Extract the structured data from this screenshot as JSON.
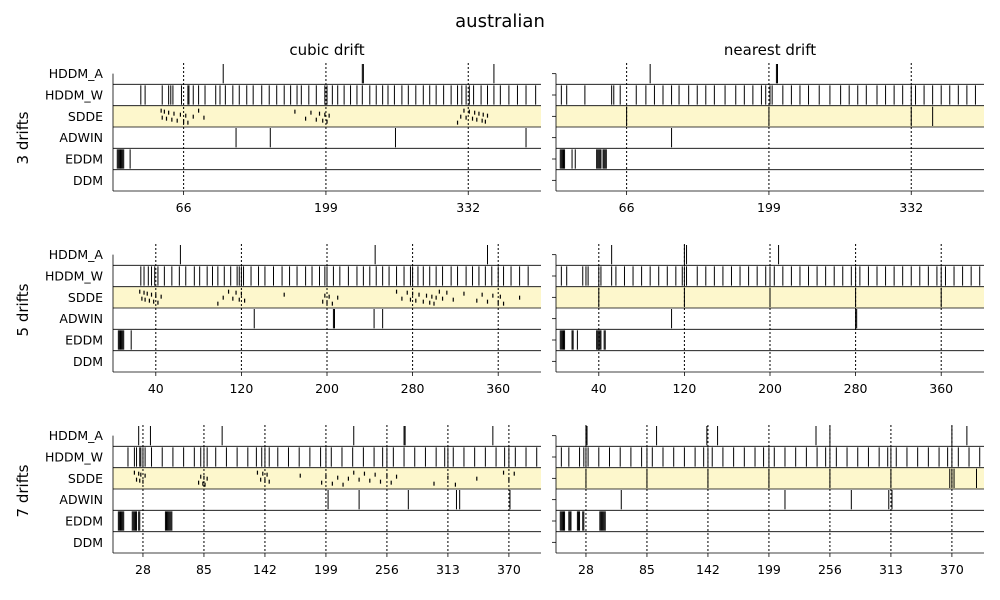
{
  "figure_title": "australian",
  "column_titles": [
    "cubic drift",
    "nearest drift"
  ],
  "row_titles": [
    "3 drifts",
    "5 drifts",
    "7 drifts"
  ],
  "detectors": [
    "HDDM_A",
    "HDDM_W",
    "SDDE",
    "ADWIN",
    "EDDM",
    "DDM"
  ],
  "colors": {
    "highlight": "#fdf7cc",
    "marks": "#000000",
    "frame": "#000000"
  },
  "chart_data": [
    {
      "type": "event-raster",
      "title": "cubic drift",
      "row_label": "3 drifts",
      "xlim": [
        0,
        400
      ],
      "xticks": [
        66,
        199,
        332
      ],
      "drift_points": [
        66,
        199,
        332
      ],
      "events": {
        "HDDM_A": [
          103,
          233,
          234,
          356
        ],
        "HDDM_W": [
          26,
          30,
          46,
          52,
          54,
          56,
          64,
          70,
          71,
          75,
          80,
          86,
          96,
          100,
          105,
          112,
          118,
          125,
          131,
          139,
          146,
          153,
          160,
          166,
          172,
          176,
          183,
          190,
          198,
          200,
          205,
          210,
          216,
          222,
          228,
          233,
          240,
          246,
          252,
          257,
          263,
          270,
          276,
          283,
          290,
          296,
          302,
          309,
          316,
          322,
          326,
          330,
          333,
          337,
          344,
          350,
          356,
          362,
          370,
          378,
          386,
          395
        ],
        "SDDE": [
          45,
          46,
          48,
          50,
          52,
          55,
          57,
          60,
          63,
          66,
          68,
          70,
          75,
          80,
          85,
          170,
          180,
          185,
          190,
          193,
          196,
          198,
          200,
          202,
          322,
          325,
          328,
          330,
          333,
          336,
          338,
          340,
          342,
          345,
          346,
          348,
          350
        ],
        "ADWIN": [
          115,
          147,
          264,
          386
        ],
        "EDDM": [
          4,
          5,
          6,
          7,
          8,
          9,
          10,
          16
        ],
        "DDM": []
      }
    },
    {
      "type": "event-raster",
      "title": "nearest drift",
      "row_label": "3 drifts",
      "xlim": [
        0,
        400
      ],
      "xticks": [
        66,
        199,
        332
      ],
      "drift_points": [
        66,
        199,
        332
      ],
      "events": {
        "HDDM_A": [
          88,
          206,
          207
        ],
        "HDDM_W": [
          5,
          10,
          27,
          52,
          54,
          60,
          75,
          84,
          92,
          100,
          108,
          115,
          124,
          132,
          140,
          148,
          158,
          168,
          176,
          184,
          192,
          196,
          200,
          202,
          212,
          220,
          228,
          236,
          246,
          256,
          266,
          274,
          282,
          290,
          300,
          308,
          316,
          324,
          332,
          336,
          344,
          352,
          360,
          368,
          376,
          384,
          392
        ],
        "SDDE": [
          66,
          199,
          332,
          352
        ],
        "ADWIN": [
          108
        ],
        "EDDM": [
          4,
          5,
          6,
          7,
          8,
          15,
          18,
          38,
          39,
          40,
          41,
          42,
          44,
          45,
          46,
          47
        ],
        "DDM": []
      }
    },
    {
      "type": "event-raster",
      "title": "cubic drift",
      "row_label": "5 drifts",
      "xlim": [
        0,
        400
      ],
      "xticks": [
        40,
        120,
        200,
        280,
        360
      ],
      "drift_points": [
        40,
        120,
        200,
        280,
        360
      ],
      "events": {
        "HDDM_A": [
          63,
          245,
          350
        ],
        "HDDM_W": [
          26,
          29,
          33,
          36,
          39,
          42,
          48,
          55,
          62,
          68,
          76,
          81,
          88,
          93,
          98,
          104,
          110,
          116,
          118,
          120,
          122,
          129,
          136,
          142,
          150,
          158,
          165,
          172,
          180,
          186,
          193,
          198,
          200,
          206,
          212,
          220,
          228,
          234,
          240,
          246,
          252,
          258,
          265,
          272,
          278,
          280,
          285,
          290,
          296,
          302,
          308,
          316,
          322,
          330,
          336,
          342,
          348,
          354,
          360,
          365,
          372,
          380,
          388
        ],
        "SDDE": [
          25,
          27,
          29,
          30,
          32,
          34,
          36,
          38,
          40,
          42,
          45,
          98,
          103,
          108,
          112,
          115,
          118,
          120,
          123,
          160,
          196,
          198,
          200,
          202,
          205,
          210,
          265,
          270,
          275,
          278,
          280,
          283,
          286,
          290,
          293,
          296,
          298,
          300,
          302,
          305,
          308,
          312,
          318,
          328,
          340,
          345,
          350,
          355,
          360,
          362,
          365,
          380
        ],
        "ADWIN": [
          132,
          206,
          207,
          244,
          252
        ],
        "EDDM": [
          5,
          6,
          7,
          8,
          9,
          10,
          17
        ],
        "DDM": []
      }
    },
    {
      "type": "event-raster",
      "title": "nearest drift",
      "row_label": "5 drifts",
      "xlim": [
        0,
        400
      ],
      "xticks": [
        40,
        120,
        200,
        280,
        360
      ],
      "drift_points": [
        40,
        120,
        200,
        280,
        360
      ],
      "events": {
        "HDDM_A": [
          52,
          120,
          122,
          208
        ],
        "HDDM_W": [
          5,
          10,
          25,
          28,
          30,
          40,
          42,
          52,
          56,
          64,
          72,
          80,
          88,
          96,
          104,
          112,
          118,
          120,
          122,
          132,
          140,
          148,
          156,
          164,
          172,
          180,
          188,
          196,
          200,
          204,
          212,
          220,
          228,
          236,
          244,
          252,
          260,
          268,
          276,
          280,
          284,
          292,
          300,
          308,
          316,
          324,
          332,
          340,
          348,
          356,
          360,
          364,
          372,
          380,
          388,
          396
        ],
        "SDDE": [
          40,
          120,
          200,
          280,
          360
        ],
        "ADWIN": [
          108,
          280,
          281
        ],
        "EDDM": [
          4,
          5,
          6,
          7,
          8,
          15,
          16,
          20,
          38,
          39,
          40,
          41,
          42,
          45,
          46
        ],
        "DDM": []
      }
    },
    {
      "type": "event-raster",
      "title": "cubic drift",
      "row_label": "7 drifts",
      "xlim": [
        0,
        400
      ],
      "xticks": [
        28,
        85,
        142,
        199,
        256,
        313,
        370
      ],
      "drift_points": [
        28,
        85,
        142,
        199,
        256,
        313,
        370
      ],
      "events": {
        "HDDM_A": [
          24,
          35,
          102,
          225,
          272,
          273,
          355
        ],
        "HDDM_W": [
          14,
          20,
          22,
          25,
          26,
          28,
          30,
          36,
          46,
          56,
          66,
          76,
          82,
          85,
          88,
          96,
          106,
          116,
          126,
          134,
          139,
          142,
          146,
          154,
          164,
          174,
          184,
          194,
          199,
          204,
          214,
          224,
          234,
          244,
          252,
          256,
          262,
          272,
          282,
          292,
          302,
          310,
          313,
          318,
          328,
          338,
          348,
          358,
          366,
          370,
          376,
          386,
          396
        ],
        "SDDE": [
          20,
          22,
          24,
          25,
          26,
          28,
          30,
          80,
          82,
          84,
          85,
          86,
          88,
          135,
          138,
          140,
          142,
          144,
          146,
          175,
          195,
          199,
          205,
          210,
          215,
          220,
          225,
          230,
          235,
          240,
          245,
          250,
          256,
          260,
          265,
          300,
          313,
          320,
          340,
          365,
          370,
          375
        ],
        "ADWIN": [
          201,
          230,
          276,
          321,
          324,
          371
        ],
        "EDDM": [
          5,
          6,
          7,
          8,
          9,
          10,
          18,
          19,
          20,
          21,
          22,
          24,
          25,
          49,
          50,
          51,
          52,
          53,
          54,
          55
        ],
        "DDM": []
      }
    },
    {
      "type": "event-raster",
      "title": "nearest drift",
      "row_label": "7 drifts",
      "xlim": [
        0,
        400
      ],
      "xticks": [
        28,
        85,
        142,
        199,
        256,
        313,
        370
      ],
      "drift_points": [
        28,
        85,
        142,
        199,
        256,
        313,
        370
      ],
      "events": {
        "HDDM_A": [
          28,
          29,
          94,
          141,
          151,
          243,
          256,
          370,
          384
        ],
        "HDDM_W": [
          5,
          12,
          22,
          26,
          28,
          30,
          40,
          50,
          60,
          70,
          80,
          85,
          90,
          100,
          110,
          120,
          130,
          138,
          142,
          146,
          156,
          166,
          176,
          186,
          194,
          199,
          204,
          214,
          224,
          234,
          244,
          252,
          256,
          262,
          272,
          282,
          292,
          302,
          310,
          313,
          318,
          328,
          338,
          348,
          358,
          366,
          370,
          376,
          386,
          396
        ],
        "SDDE": [
          28,
          85,
          142,
          199,
          256,
          313,
          368,
          370,
          372,
          393
        ],
        "ADWIN": [
          61,
          214,
          276,
          311,
          314
        ],
        "EDDM": [
          4,
          5,
          6,
          7,
          8,
          12,
          13,
          14,
          20,
          21,
          22,
          25,
          26,
          41,
          42,
          43,
          44,
          45,
          46
        ],
        "DDM": []
      }
    }
  ]
}
